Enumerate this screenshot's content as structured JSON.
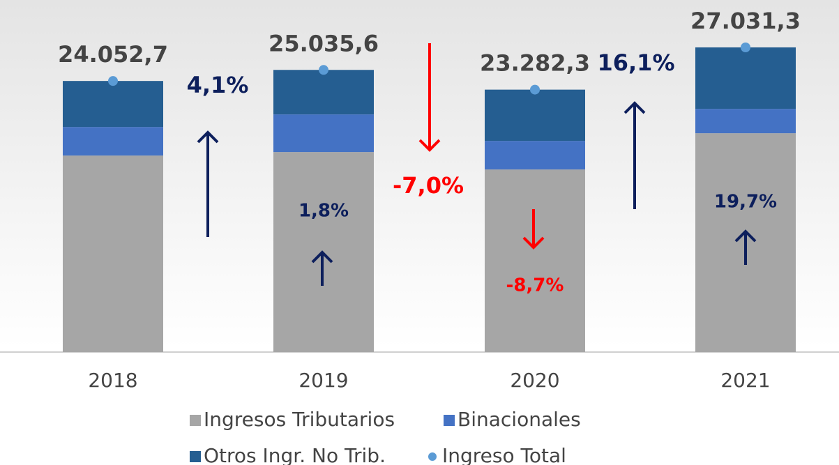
{
  "chart_data": {
    "type": "bar",
    "stacked": true,
    "categories": [
      "2018",
      "2019",
      "2020",
      "2021"
    ],
    "series": [
      {
        "name": "Ingresos Tributarios",
        "color": "#a6a6a6",
        "values": [
          17436,
          17746,
          16200,
          19415
        ]
      },
      {
        "name": "Binacionales",
        "color": "#4472c4",
        "values": [
          2535,
          3339,
          2535,
          2164
        ]
      },
      {
        "name": "Otros Ingr. No Trib.",
        "color": "#255e91",
        "values": [
          4081.7,
          3950.6,
          4547.3,
          5452.3
        ]
      },
      {
        "name": "Ingreso Total",
        "type": "scatter",
        "color": "#5b9bd5",
        "values": [
          24052.7,
          25035.6,
          23282.3,
          27031.3
        ],
        "value_labels": [
          "24.052,7",
          "25.035,6",
          "23.282,3",
          "27.031,3"
        ]
      }
    ],
    "legend": "bottom",
    "annotations": [
      {
        "text": "4,1%",
        "direction": "up",
        "color": "#0d1f5c"
      },
      {
        "text": "1,8%",
        "direction": "up",
        "color": "#0d1f5c"
      },
      {
        "text": "-7,0%",
        "direction": "down",
        "color": "#ff0000"
      },
      {
        "text": "-8,7%",
        "direction": "down",
        "color": "#ff0000"
      },
      {
        "text": "16,1%",
        "direction": "up",
        "color": "#0d1f5c"
      },
      {
        "text": "19,7%",
        "direction": "up",
        "color": "#0d1f5c"
      }
    ]
  }
}
